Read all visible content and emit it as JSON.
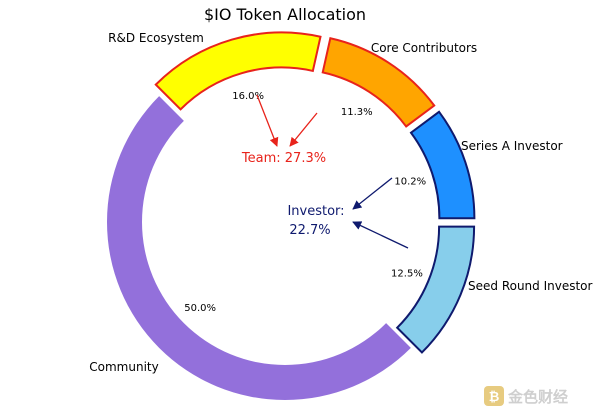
{
  "chart_data": {
    "type": "pie",
    "title": "$IO Token Allocation",
    "slices": [
      {
        "label": "R&D Ecosystem",
        "value": 16.0,
        "pct_label": "16.0%",
        "color": "#ffff00",
        "edge": "#e8231b",
        "group": "team"
      },
      {
        "label": "Core Contributors",
        "value": 11.3,
        "pct_label": "11.3%",
        "color": "#ffa500",
        "edge": "#e8231b",
        "group": "team"
      },
      {
        "label": "Series A Investor",
        "value": 10.2,
        "pct_label": "10.2%",
        "color": "#1e90ff",
        "edge": "#0f1a6e",
        "group": "investor"
      },
      {
        "label": "Seed Round Investor",
        "value": 12.5,
        "pct_label": "12.5%",
        "color": "#87ceeb",
        "edge": "#0f1a6e",
        "group": "investor"
      },
      {
        "label": "Community",
        "value": 50.0,
        "pct_label": "50.0%",
        "color": "#9370db",
        "edge": "#9370db",
        "group": "community"
      }
    ],
    "annotations": {
      "team_label": "Team: 27.3%",
      "team_color": "#e8231b",
      "investor_line1": "Investor:",
      "investor_line2": "22.7%",
      "investor_color": "#0f1a6e"
    }
  },
  "watermark": {
    "text": "金色财经",
    "icon": "gold-finance-logo-icon"
  }
}
